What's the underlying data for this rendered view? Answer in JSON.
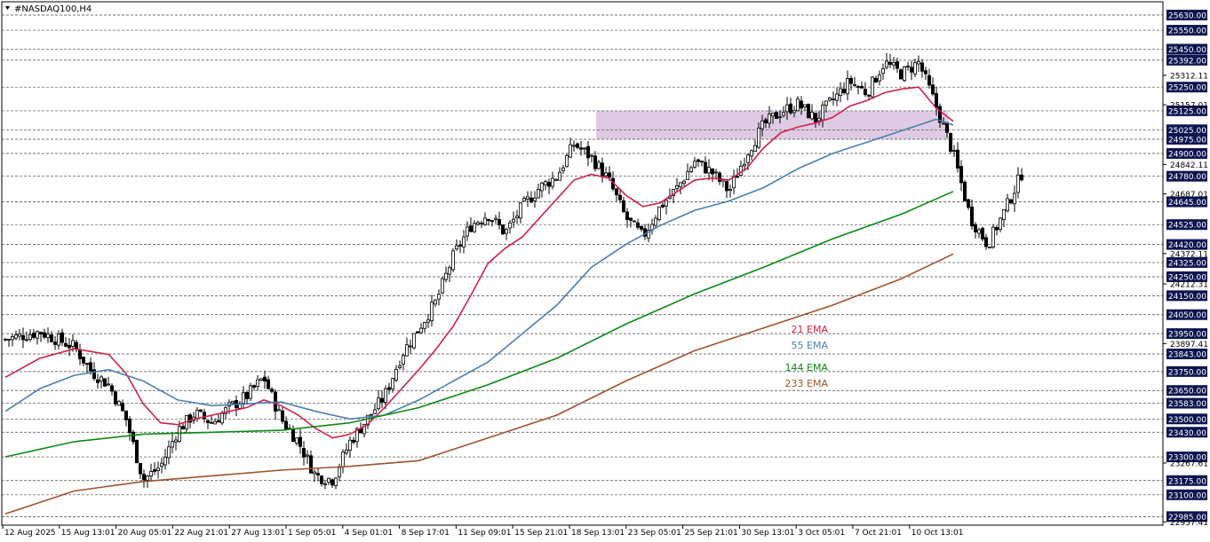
{
  "chart_data": {
    "type": "candlestick",
    "title": "#NASDAQ100,H4",
    "ylim": [
      22940,
      25700
    ],
    "price_levels": [
      25630,
      25550,
      25450,
      25392,
      25250,
      25125,
      25025,
      24975,
      24900,
      24780,
      24645,
      24525,
      24420,
      24325,
      24250,
      24150,
      24050,
      23950,
      23843,
      23750,
      23650,
      23583,
      23500,
      23430,
      23300,
      23175,
      23100,
      22985
    ],
    "price_level_labels": [
      "25630.00",
      "25550.00",
      "25450.00",
      "25392.00",
      "25250.00",
      "25125.00",
      "25025.00",
      "24975.00",
      "24900.00",
      "24780.00",
      "24645.00",
      "24525.00",
      "24420.00",
      "24325.00",
      "24250.00",
      "24150.00",
      "24050.00",
      "23950.00",
      "23843.00",
      "23750.00",
      "23650.00",
      "23583.00",
      "23500.00",
      "23430.00",
      "23300.00",
      "23175.00",
      "23100.00",
      "22985.00"
    ],
    "scale_ticks": [
      "25312.11",
      "25157.01",
      "24842.11",
      "24687.01",
      "24372.11",
      "24212.31",
      "23897.41",
      "23267.61",
      "22957.41"
    ],
    "x_tick_labels": [
      "12 Aug 2025",
      "15 Aug 13:01",
      "20 Aug 05:01",
      "22 Aug 21:01",
      "27 Aug 13:01",
      "1 Sep 05:01",
      "4 Sep 01:01",
      "8 Sep 17:01",
      "11 Sep 09:01",
      "15 Sep 21:01",
      "18 Sep 13:01",
      "23 Sep 05:01",
      "25 Sep 21:01",
      "30 Sep 13:01",
      "3 Oct 05:01",
      "7 Oct 21:01",
      "10 Oct 13:01"
    ],
    "grid": true,
    "zone": {
      "from": 24975,
      "to": 25125,
      "start_label": "18 Sep 13:01",
      "color": "#d8c2de"
    },
    "series": [
      {
        "name": "21 EMA",
        "color": "#d0204a"
      },
      {
        "name": "55 EMA",
        "color": "#4a7fb0"
      },
      {
        "name": "144 EMA",
        "color": "#0a8a12"
      },
      {
        "name": "233 EMA",
        "color": "#a0522d"
      }
    ],
    "price_path": [
      [
        0,
        23920
      ],
      [
        2,
        23960
      ],
      [
        4,
        23880
      ],
      [
        5,
        23750
      ],
      [
        6,
        23680
      ],
      [
        7,
        23500
      ],
      [
        8,
        23180
      ],
      [
        9,
        23250
      ],
      [
        10,
        23440
      ],
      [
        11,
        23530
      ],
      [
        12,
        23480
      ],
      [
        13,
        23560
      ],
      [
        14,
        23620
      ],
      [
        15,
        23720
      ],
      [
        16,
        23500
      ],
      [
        17,
        23380
      ],
      [
        18,
        23200
      ],
      [
        19,
        23180
      ],
      [
        20,
        23380
      ],
      [
        22,
        23620
      ],
      [
        23,
        23840
      ],
      [
        24,
        23980
      ],
      [
        25,
        24120
      ],
      [
        26,
        24360
      ],
      [
        27,
        24520
      ],
      [
        28,
        24580
      ],
      [
        29,
        24480
      ],
      [
        30,
        24620
      ],
      [
        31,
        24720
      ],
      [
        32,
        24780
      ],
      [
        33,
        24950
      ],
      [
        34,
        24880
      ],
      [
        35,
        24760
      ],
      [
        36,
        24560
      ],
      [
        37,
        24460
      ],
      [
        38,
        24620
      ],
      [
        39,
        24720
      ],
      [
        40,
        24860
      ],
      [
        41,
        24800
      ],
      [
        42,
        24700
      ],
      [
        43,
        24900
      ],
      [
        44,
        25050
      ],
      [
        45,
        25120
      ],
      [
        46,
        25160
      ],
      [
        47,
        25080
      ],
      [
        48,
        25180
      ],
      [
        49,
        25280
      ],
      [
        50,
        25220
      ],
      [
        51,
        25380
      ],
      [
        52,
        25320
      ],
      [
        53,
        25380
      ],
      [
        54,
        25150
      ],
      [
        55,
        24900
      ],
      [
        56,
        24560
      ],
      [
        57,
        24420
      ],
      [
        58,
        24600
      ],
      [
        59,
        24800
      ]
    ],
    "ema21": [
      [
        0,
        23720
      ],
      [
        2,
        23820
      ],
      [
        4,
        23870
      ],
      [
        6,
        23840
      ],
      [
        7,
        23740
      ],
      [
        8,
        23580
      ],
      [
        9,
        23480
      ],
      [
        10,
        23470
      ],
      [
        11,
        23500
      ],
      [
        12,
        23520
      ],
      [
        13,
        23540
      ],
      [
        14,
        23560
      ],
      [
        15,
        23600
      ],
      [
        16,
        23570
      ],
      [
        17,
        23520
      ],
      [
        18,
        23450
      ],
      [
        19,
        23400
      ],
      [
        20,
        23420
      ],
      [
        21,
        23470
      ],
      [
        22,
        23560
      ],
      [
        23,
        23660
      ],
      [
        24,
        23760
      ],
      [
        25,
        23870
      ],
      [
        26,
        23990
      ],
      [
        27,
        24150
      ],
      [
        28,
        24320
      ],
      [
        29,
        24400
      ],
      [
        30,
        24460
      ],
      [
        31,
        24560
      ],
      [
        32,
        24660
      ],
      [
        33,
        24760
      ],
      [
        34,
        24790
      ],
      [
        35,
        24770
      ],
      [
        36,
        24680
      ],
      [
        37,
        24620
      ],
      [
        38,
        24640
      ],
      [
        39,
        24700
      ],
      [
        40,
        24760
      ],
      [
        41,
        24770
      ],
      [
        42,
        24760
      ],
      [
        43,
        24820
      ],
      [
        44,
        24930
      ],
      [
        45,
        25010
      ],
      [
        46,
        25040
      ],
      [
        47,
        25060
      ],
      [
        48,
        25090
      ],
      [
        49,
        25150
      ],
      [
        50,
        25180
      ],
      [
        51,
        25220
      ],
      [
        52,
        25240
      ],
      [
        53,
        25250
      ],
      [
        54,
        25140
      ],
      [
        55,
        25070
      ]
    ],
    "ema55": [
      [
        0,
        23540
      ],
      [
        2,
        23660
      ],
      [
        4,
        23730
      ],
      [
        6,
        23760
      ],
      [
        8,
        23700
      ],
      [
        10,
        23600
      ],
      [
        12,
        23570
      ],
      [
        14,
        23580
      ],
      [
        16,
        23590
      ],
      [
        18,
        23540
      ],
      [
        20,
        23500
      ],
      [
        22,
        23520
      ],
      [
        24,
        23600
      ],
      [
        26,
        23700
      ],
      [
        28,
        23800
      ],
      [
        30,
        23950
      ],
      [
        32,
        24100
      ],
      [
        34,
        24300
      ],
      [
        36,
        24420
      ],
      [
        38,
        24520
      ],
      [
        40,
        24600
      ],
      [
        42,
        24650
      ],
      [
        44,
        24720
      ],
      [
        46,
        24820
      ],
      [
        48,
        24900
      ],
      [
        50,
        24960
      ],
      [
        52,
        25020
      ],
      [
        54,
        25080
      ],
      [
        55,
        25050
      ]
    ],
    "ema144": [
      [
        0,
        23300
      ],
      [
        4,
        23380
      ],
      [
        8,
        23420
      ],
      [
        12,
        23430
      ],
      [
        16,
        23440
      ],
      [
        20,
        23480
      ],
      [
        24,
        23560
      ],
      [
        28,
        23680
      ],
      [
        32,
        23820
      ],
      [
        36,
        24000
      ],
      [
        40,
        24160
      ],
      [
        44,
        24300
      ],
      [
        48,
        24450
      ],
      [
        52,
        24580
      ],
      [
        54,
        24660
      ],
      [
        55,
        24700
      ]
    ],
    "ema233": [
      [
        0,
        23000
      ],
      [
        4,
        23120
      ],
      [
        8,
        23170
      ],
      [
        12,
        23200
      ],
      [
        16,
        23230
      ],
      [
        20,
        23250
      ],
      [
        24,
        23280
      ],
      [
        28,
        23400
      ],
      [
        32,
        23520
      ],
      [
        36,
        23700
      ],
      [
        40,
        23860
      ],
      [
        44,
        23980
      ],
      [
        48,
        24100
      ],
      [
        52,
        24240
      ],
      [
        55,
        24370
      ]
    ]
  }
}
